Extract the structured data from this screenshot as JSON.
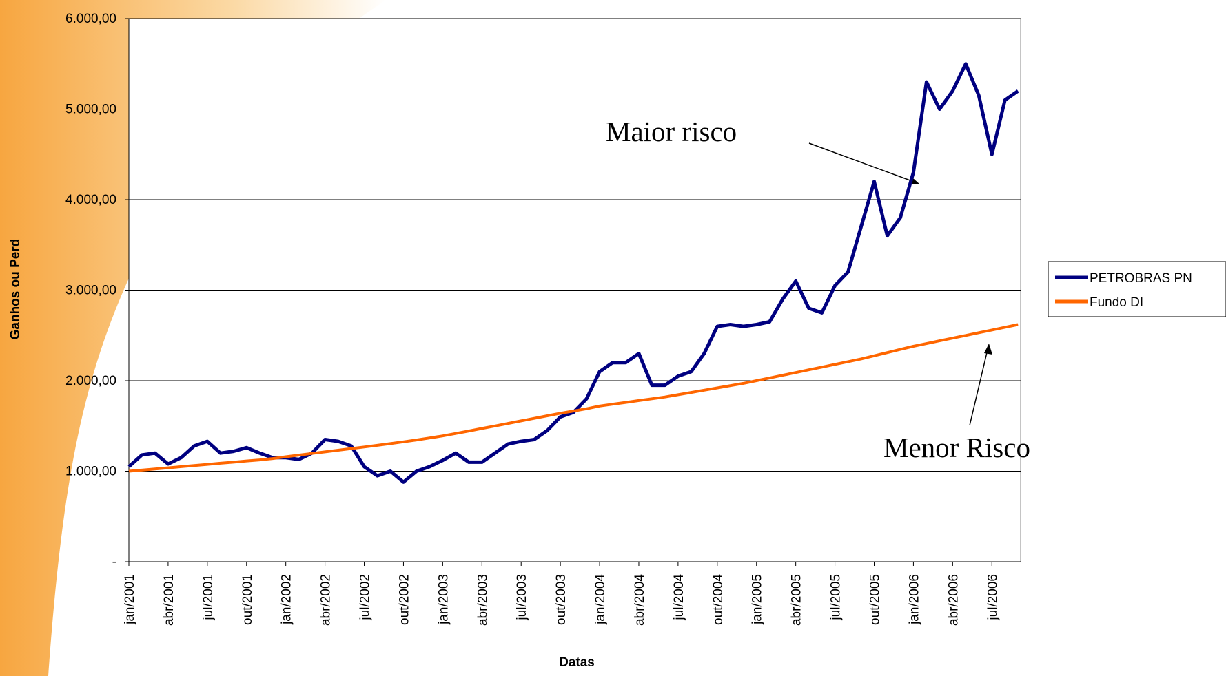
{
  "chart_data": {
    "type": "line",
    "y_label": "Ganhos ou Perd",
    "x_label": "Datas",
    "annotations": [
      "Maior risco",
      "Menor Risco"
    ],
    "categories": [
      "jan/2001",
      null,
      null,
      "abr/2001",
      null,
      null,
      "jul/2001",
      null,
      null,
      "out/2001",
      null,
      null,
      "jan/2002",
      null,
      null,
      "abr/2002",
      null,
      null,
      "jul/2002",
      null,
      null,
      "out/2002",
      null,
      null,
      "jan/2003",
      null,
      null,
      "abr/2003",
      null,
      null,
      "jul/2003",
      null,
      null,
      "out/2003",
      null,
      null,
      "jan/2004",
      null,
      null,
      "abr/2004",
      null,
      null,
      "jul/2004",
      null,
      null,
      "out/2004",
      null,
      null,
      "jan/2005",
      null,
      null,
      "abr/2005",
      null,
      null,
      "jul/2005",
      null,
      null,
      "out/2005",
      null,
      null,
      "jan/2006",
      null,
      null,
      "abr/2006",
      null,
      null,
      "jul/2006",
      null,
      null
    ],
    "series": [
      {
        "name": "PETROBRAS PN",
        "color": "#000080",
        "values": [
          1050,
          1180,
          1200,
          1080,
          1150,
          1280,
          1330,
          1200,
          1220,
          1260,
          1200,
          1150,
          1150,
          1130,
          1200,
          1350,
          1330,
          1280,
          1050,
          950,
          1000,
          880,
          1000,
          1050,
          1120,
          1200,
          1100,
          1100,
          1200,
          1300,
          1330,
          1350,
          1450,
          1600,
          1650,
          1800,
          2100,
          2200,
          2200,
          2300,
          1950,
          1950,
          2050,
          2100,
          2300,
          2600,
          2620,
          2600,
          2620,
          2650,
          2900,
          3100,
          2800,
          2750,
          3050,
          3200,
          3700,
          4200,
          3600,
          3800,
          4300,
          5300,
          5000,
          5200,
          5500,
          5150,
          4500,
          5100,
          5200
        ]
      },
      {
        "name": "Fundo DI",
        "color": "#ff6600",
        "values": [
          1000,
          1012,
          1025,
          1037,
          1050,
          1063,
          1075,
          1088,
          1100,
          1113,
          1125,
          1140,
          1160,
          1178,
          1196,
          1214,
          1232,
          1250,
          1268,
          1286,
          1305,
          1325,
          1345,
          1367,
          1390,
          1417,
          1444,
          1472,
          1500,
          1528,
          1556,
          1584,
          1612,
          1640,
          1665,
          1690,
          1720,
          1740,
          1760,
          1780,
          1800,
          1820,
          1845,
          1870,
          1895,
          1920,
          1945,
          1970,
          2000,
          2030,
          2060,
          2090,
          2120,
          2150,
          2180,
          2210,
          2240,
          2275,
          2310,
          2345,
          2380,
          2410,
          2440,
          2470,
          2500,
          2530,
          2560,
          2590,
          2620
        ]
      }
    ],
    "ylim": [
      0,
      6000
    ],
    "yticks": [
      {
        "value": 0,
        "label": "-"
      },
      {
        "value": 1000,
        "label": "1.000,00"
      },
      {
        "value": 2000,
        "label": "2.000,00"
      },
      {
        "value": 3000,
        "label": "3.000,00"
      },
      {
        "value": 4000,
        "label": "4.000,00"
      },
      {
        "value": 5000,
        "label": "5.000,00"
      },
      {
        "value": 6000,
        "label": "6.000,00"
      }
    ],
    "grid": true,
    "legend": "right"
  }
}
